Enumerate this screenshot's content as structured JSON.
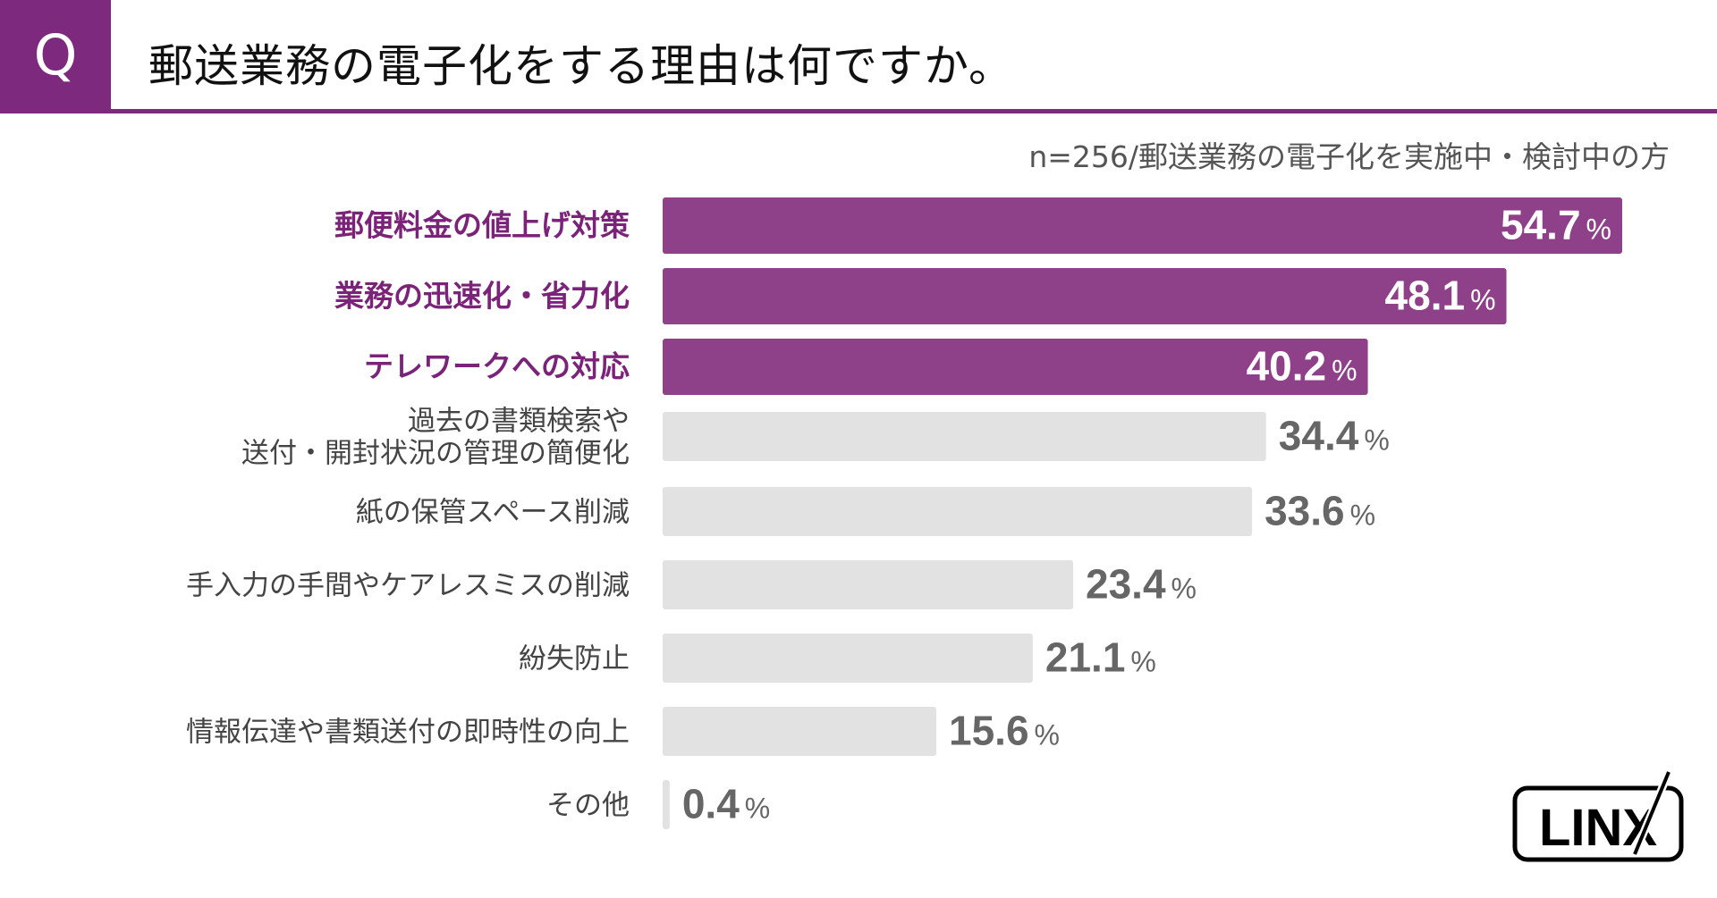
{
  "header": {
    "badge": "Q",
    "title": "郵送業務の電子化をする理由は何ですか。"
  },
  "subtitle": "n=256/郵送業務の電子化を実施中・検討中の方",
  "logo": {
    "text": "LINX"
  },
  "colors": {
    "accent": "#7d2a7e",
    "highlight_bar": "#8e4189",
    "highlight_label": "#7b2379",
    "normal_bar": "#e2e2e2",
    "normal_label": "#444444",
    "value_text_outside": "#666666",
    "value_text_inside": "#ffffff"
  },
  "chart_data": {
    "type": "bar",
    "orientation": "horizontal",
    "title": "郵送業務の電子化をする理由は何ですか。",
    "xlabel": "",
    "ylabel": "",
    "unit": "%",
    "xlim": [
      0,
      60
    ],
    "grid": false,
    "highlight_top": 3,
    "categories": [
      [
        "郵便料金の値上げ対策"
      ],
      [
        "業務の迅速化・省力化"
      ],
      [
        "テレワークへの対応"
      ],
      [
        "過去の書類検索や",
        "送付・開封状況の管理の簡便化"
      ],
      [
        "紙の保管スペース削減"
      ],
      [
        "手入力の手間やケアレスミスの削減"
      ],
      [
        "紛失防止"
      ],
      [
        "情報伝達や書類送付の即時性の向上"
      ],
      [
        "その他"
      ]
    ],
    "values": [
      54.7,
      48.1,
      40.2,
      34.4,
      33.6,
      23.4,
      21.1,
      15.6,
      0.4
    ]
  }
}
